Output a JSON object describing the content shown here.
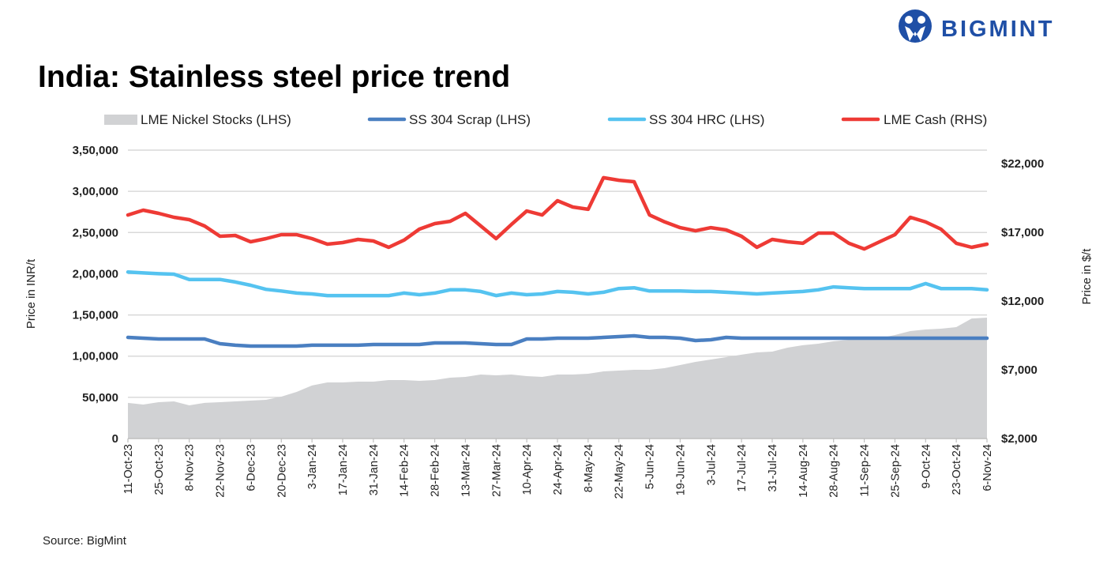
{
  "brand": {
    "logo_text": "BIGMINT",
    "color": "#1f4fa6"
  },
  "source": "Source: BigMint",
  "chart_data": {
    "type": "line",
    "title": "India: Stainless steel price trend",
    "ylabel": "Price in INR/t",
    "ylabel_right": "Price in $/t",
    "ylim": [
      0,
      350000
    ],
    "ylim_right": [
      2000,
      22000
    ],
    "yticks": [
      "0",
      "50,000",
      "1,00,000",
      "1,50,000",
      "2,00,000",
      "2,50,000",
      "3,00,000",
      "3,50,000"
    ],
    "yticks_right": [
      "$2,000",
      "$7,000",
      "$12,000",
      "$17,000",
      "$22,000"
    ],
    "grid": true,
    "legend_position": "top",
    "x": [
      "11-Oct-23",
      "18-Oct-23",
      "25-Oct-23",
      "1-Nov-23",
      "8-Nov-23",
      "15-Nov-23",
      "22-Nov-23",
      "29-Nov-23",
      "6-Dec-23",
      "13-Dec-23",
      "20-Dec-23",
      "27-Dec-23",
      "3-Jan-24",
      "10-Jan-24",
      "17-Jan-24",
      "24-Jan-24",
      "31-Jan-24",
      "7-Feb-24",
      "14-Feb-24",
      "21-Feb-24",
      "28-Feb-24",
      "6-Mar-24",
      "13-Mar-24",
      "20-Mar-24",
      "27-Mar-24",
      "3-Apr-24",
      "10-Apr-24",
      "17-Apr-24",
      "24-Apr-24",
      "1-May-24",
      "8-May-24",
      "15-May-24",
      "22-May-24",
      "29-May-24",
      "5-Jun-24",
      "12-Jun-24",
      "19-Jun-24",
      "26-Jun-24",
      "3-Jul-24",
      "10-Jul-24",
      "17-Jul-24",
      "24-Jul-24",
      "31-Jul-24",
      "7-Aug-24",
      "14-Aug-24",
      "21-Aug-24",
      "28-Aug-24",
      "4-Sep-24",
      "11-Sep-24",
      "18-Sep-24",
      "25-Sep-24",
      "2-Oct-24",
      "9-Oct-24",
      "16-Oct-24",
      "23-Oct-24",
      "30-Oct-24",
      "6-Nov-24"
    ],
    "series": [
      {
        "name": "LME Nickel Stocks (LHS)",
        "kind": "area",
        "axis": "left",
        "color": "#d1d2d4",
        "values": [
          43200,
          41200,
          44100,
          45100,
          40300,
          43200,
          44100,
          45100,
          46000,
          47000,
          50800,
          56600,
          64300,
          68100,
          68100,
          69000,
          69000,
          71000,
          71000,
          70000,
          71000,
          73800,
          74800,
          77700,
          76700,
          77700,
          75800,
          74800,
          77700,
          77700,
          78600,
          81500,
          82500,
          83400,
          83400,
          85400,
          89200,
          93000,
          95900,
          98800,
          101700,
          104500,
          105500,
          110300,
          113200,
          115100,
          118000,
          119900,
          120800,
          121800,
          125600,
          130400,
          132300,
          133300,
          135200,
          145700,
          146700
        ]
      },
      {
        "name": "SS 304 Scrap (LHS)",
        "kind": "line",
        "axis": "left",
        "color": "#4a7fc1",
        "values": [
          122700,
          121800,
          120800,
          120800,
          120800,
          120800,
          115100,
          113200,
          112200,
          112200,
          112200,
          112200,
          113200,
          113200,
          113200,
          113200,
          114100,
          114100,
          114100,
          114100,
          116000,
          116000,
          116000,
          115100,
          114100,
          114100,
          120800,
          120800,
          121800,
          121800,
          121800,
          122700,
          123700,
          124700,
          122700,
          122700,
          121800,
          118900,
          119900,
          122700,
          121800,
          121800,
          121800,
          121800,
          121800,
          121800,
          121800,
          121800,
          121800,
          121800,
          121800,
          121800,
          121800,
          121800,
          121800,
          121800,
          121800
        ]
      },
      {
        "name": "SS 304 HRC (LHS)",
        "kind": "line",
        "axis": "left",
        "color": "#55c3f0",
        "values": [
          202000,
          201000,
          200000,
          199500,
          193000,
          193000,
          193000,
          190000,
          186000,
          181000,
          179000,
          176500,
          175500,
          173500,
          173500,
          173500,
          173500,
          173500,
          176500,
          174500,
          176500,
          180500,
          180500,
          178500,
          173500,
          176500,
          174500,
          175500,
          178500,
          177500,
          175500,
          177500,
          182000,
          183000,
          179000,
          179000,
          179000,
          178500,
          178500,
          177500,
          176500,
          175500,
          176500,
          177500,
          178500,
          180500,
          184000,
          183000,
          182000,
          182000,
          182000,
          182000,
          188000,
          182000,
          182000,
          182000,
          180500
        ]
      },
      {
        "name": "LME Cash (RHS)",
        "kind": "line",
        "axis": "right",
        "color": "#ee3a35",
        "values": [
          18260,
          18610,
          18380,
          18090,
          17920,
          17460,
          16710,
          16770,
          16310,
          16540,
          16830,
          16830,
          16540,
          16140,
          16250,
          16480,
          16370,
          15910,
          16430,
          17230,
          17630,
          17800,
          18380,
          17460,
          16540,
          17570,
          18550,
          18260,
          19300,
          18840,
          18670,
          20970,
          20790,
          20680,
          18260,
          17750,
          17340,
          17110,
          17340,
          17170,
          16710,
          15910,
          16480,
          16310,
          16200,
          16940,
          16940,
          16200,
          15790,
          16310,
          16830,
          18090,
          17750,
          17230,
          16200,
          15910,
          16140
        ]
      }
    ]
  }
}
